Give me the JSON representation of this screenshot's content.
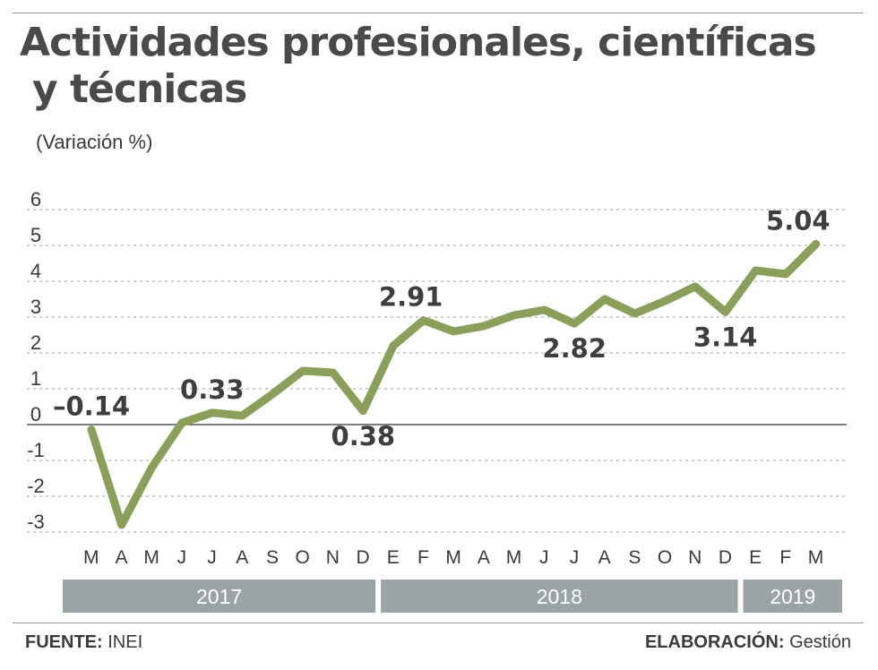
{
  "header": {
    "title_line1": "Actividades profesionales, científicas",
    "title_line2": "y técnicas",
    "subtitle": "(Variación %)"
  },
  "footer": {
    "source_label": "FUENTE:",
    "source_value": "INEI",
    "credit_label": "ELABORACIÓN:",
    "credit_value": "Gestión"
  },
  "colors": {
    "line": "#8aa05a",
    "grid": "#b4b4b4",
    "zero_line": "#555555",
    "year_band": "#9aa3a6"
  },
  "chart_data": {
    "type": "line",
    "title": "Actividades profesionales, científicas y técnicas",
    "ylabel": "(Variación %)",
    "xlabel": "",
    "ylim": [
      -3,
      6
    ],
    "yticks": [
      6,
      5,
      4,
      3,
      2,
      1,
      0,
      -1,
      -2,
      -3
    ],
    "grid": "horizontal dashed",
    "categories": [
      "M",
      "A",
      "M",
      "J",
      "J",
      "A",
      "S",
      "O",
      "N",
      "D",
      "E",
      "F",
      "M",
      "A",
      "M",
      "J",
      "J",
      "A",
      "S",
      "O",
      "N",
      "D",
      "E",
      "F",
      "M"
    ],
    "years": [
      {
        "label": "2017",
        "from": 0,
        "to": 9
      },
      {
        "label": "2018",
        "from": 10,
        "to": 21
      },
      {
        "label": "2019",
        "from": 22,
        "to": 24
      }
    ],
    "series": [
      {
        "values": [
          -0.14,
          -2.8,
          -1.2,
          0.05,
          0.33,
          0.25,
          0.85,
          1.5,
          1.45,
          0.38,
          2.2,
          2.91,
          2.6,
          2.75,
          3.05,
          3.2,
          2.82,
          3.5,
          3.1,
          3.45,
          3.85,
          3.14,
          4.3,
          4.2,
          5.04
        ]
      }
    ],
    "annotations": [
      {
        "index": 0,
        "text": "–0.14",
        "pos": "above"
      },
      {
        "index": 4,
        "text": "0.33",
        "pos": "above"
      },
      {
        "index": 9,
        "text": "0.38",
        "pos": "below"
      },
      {
        "index": 11,
        "text": "2.91",
        "pos": "above"
      },
      {
        "index": 16,
        "text": "2.82",
        "pos": "below"
      },
      {
        "index": 21,
        "text": "3.14",
        "pos": "below"
      },
      {
        "index": 24,
        "text": "5.04",
        "pos": "above"
      }
    ]
  }
}
